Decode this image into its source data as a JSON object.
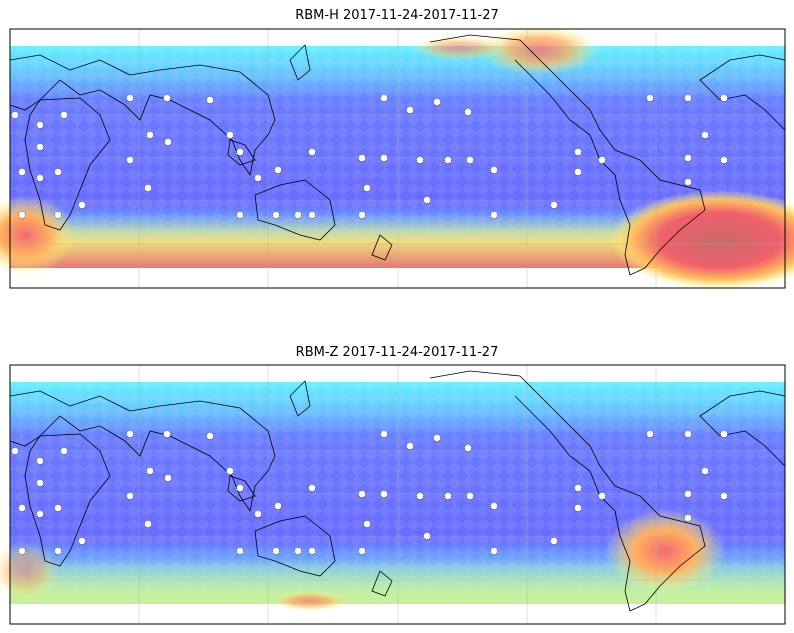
{
  "panels": [
    {
      "title": "RBM-H 2017-11-24-2017-11-27"
    },
    {
      "title": "RBM-Z 2017-11-24-2017-11-27"
    }
  ]
}
